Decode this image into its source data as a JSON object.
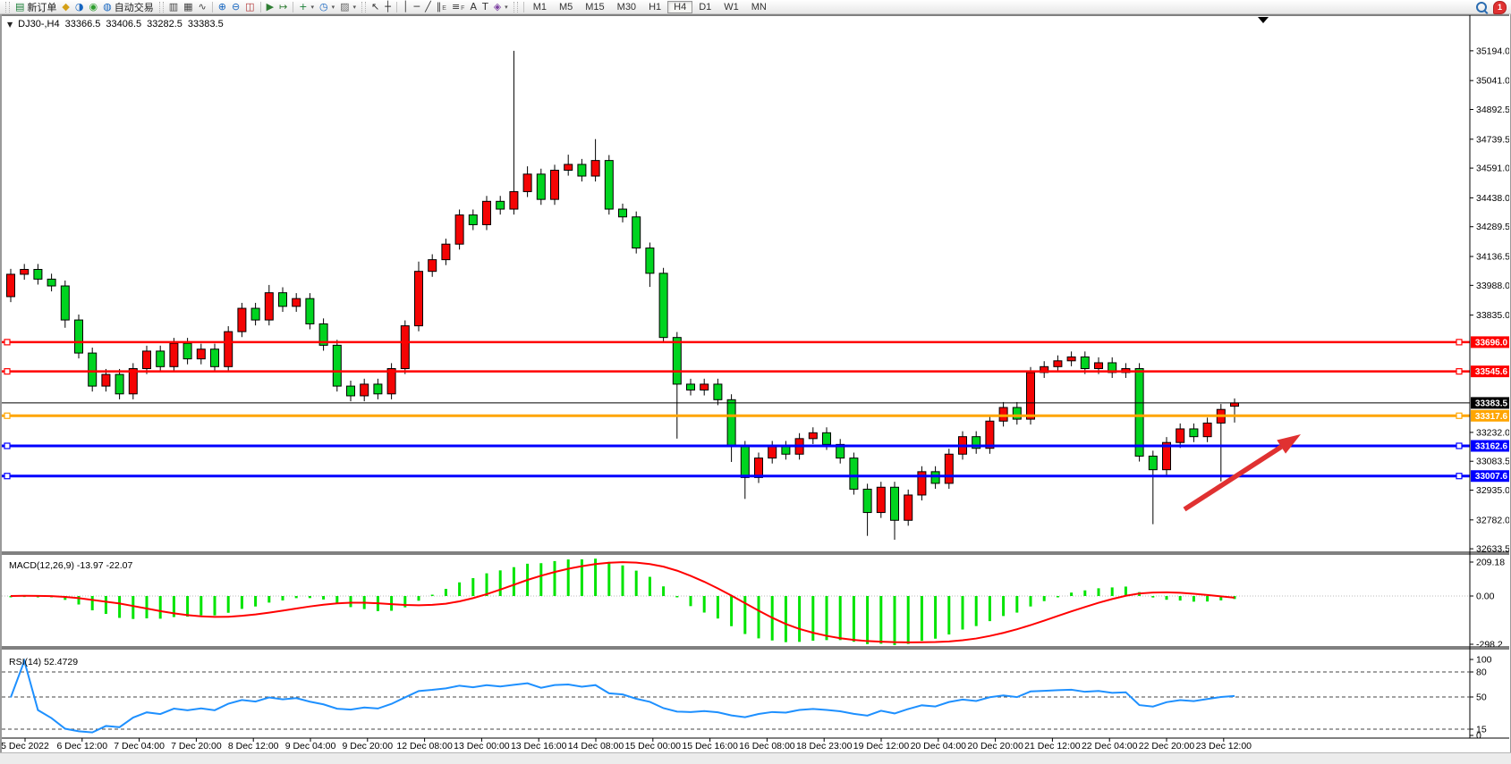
{
  "toolbar": {
    "items": [
      {
        "type": "handle"
      },
      {
        "type": "button",
        "name": "new-order-button",
        "icon": "new-order-icon",
        "glyph": "▤",
        "color": "#1a7f37",
        "label": "新订单"
      },
      {
        "type": "button",
        "name": "depth-of-market-button",
        "icon": "gold-cube-icon",
        "glyph": "◆",
        "color": "#d4a017"
      },
      {
        "type": "button",
        "name": "profile-button",
        "icon": "profile-icon",
        "glyph": "◑",
        "color": "#1565c0"
      },
      {
        "type": "button",
        "name": "signals-button",
        "icon": "signal-icon",
        "glyph": "◉",
        "color": "#2e9e2e"
      },
      {
        "type": "button",
        "name": "autotrading-button",
        "icon": "globe-icon",
        "glyph": "◍",
        "color": "#1565c0",
        "label": "自动交易"
      },
      {
        "type": "handle"
      },
      {
        "type": "button",
        "name": "bar-chart-button",
        "icon": "bar-chart-icon",
        "glyph": "▥",
        "color": "#444444"
      },
      {
        "type": "button",
        "name": "candlestick-chart-button",
        "icon": "candlestick-icon",
        "glyph": "▦",
        "color": "#444444"
      },
      {
        "type": "button",
        "name": "line-chart-button",
        "icon": "line-chart-icon",
        "glyph": "∿",
        "color": "#444444"
      },
      {
        "type": "sep"
      },
      {
        "type": "button",
        "name": "zoom-in-button",
        "icon": "zoom-in-icon",
        "glyph": "⊕",
        "color": "#1565c0"
      },
      {
        "type": "button",
        "name": "zoom-out-button",
        "icon": "zoom-out-icon",
        "glyph": "⊖",
        "color": "#1565c0"
      },
      {
        "type": "button",
        "name": "tile-windows-button",
        "icon": "tile-windows-icon",
        "glyph": "◫",
        "color": "#b03030"
      },
      {
        "type": "sep"
      },
      {
        "type": "button",
        "name": "auto-scroll-button",
        "icon": "auto-scroll-icon",
        "glyph": "▶",
        "color": "#2e7d32"
      },
      {
        "type": "button",
        "name": "chart-shift-button",
        "icon": "chart-shift-icon",
        "glyph": "↦",
        "color": "#2e7d32"
      },
      {
        "type": "sep"
      },
      {
        "type": "button",
        "name": "add-indicator-button",
        "icon": "add-indicator-icon",
        "glyph": "+",
        "color": "#1a7f37",
        "caret": true
      },
      {
        "type": "button",
        "name": "periods-button",
        "icon": "clock-icon",
        "glyph": "◷",
        "color": "#1565c0",
        "caret": true
      },
      {
        "type": "button",
        "name": "templates-button",
        "icon": "template-icon",
        "glyph": "▨",
        "color": "#666666",
        "caret": true
      },
      {
        "type": "handle"
      },
      {
        "type": "button",
        "name": "cursor-button",
        "icon": "cursor-icon",
        "glyph": "↖",
        "color": "#333333"
      },
      {
        "type": "button",
        "name": "crosshair-button",
        "icon": "crosshair-icon",
        "glyph": "┼",
        "color": "#333333"
      },
      {
        "type": "sep"
      },
      {
        "type": "button",
        "name": "vertical-line-button",
        "icon": "vertical-line-icon",
        "glyph": "│",
        "color": "#333333"
      },
      {
        "type": "button",
        "name": "horizontal-line-button",
        "icon": "horizontal-line-icon",
        "glyph": "─",
        "color": "#333333"
      },
      {
        "type": "button",
        "name": "trendline-button",
        "icon": "trendline-icon",
        "glyph": "╱",
        "color": "#333333"
      },
      {
        "type": "button",
        "name": "channel-button",
        "icon": "channel-icon",
        "glyph": "∥",
        "sub": "E",
        "color": "#333333"
      },
      {
        "type": "button",
        "name": "fibonacci-button",
        "icon": "fibonacci-icon",
        "glyph": "≡",
        "sub": "F",
        "color": "#333333"
      },
      {
        "type": "button",
        "name": "text-button",
        "icon": "text-icon",
        "glyph": "A",
        "color": "#333333"
      },
      {
        "type": "button",
        "name": "text-label-button",
        "icon": "text-label-icon",
        "glyph": "T",
        "color": "#333333"
      },
      {
        "type": "button",
        "name": "arrows-button",
        "icon": "arrows-icon",
        "glyph": "◈",
        "color": "#7b3fa0",
        "caret": true
      },
      {
        "type": "handle"
      }
    ],
    "timeframes": [
      "M1",
      "M5",
      "M15",
      "M30",
      "H1",
      "H4",
      "D1",
      "W1",
      "MN"
    ],
    "active_timeframe": "H4",
    "notification_count": "1"
  },
  "chart_header": {
    "menu_glyph": "▼",
    "symbol_period": "DJ30-,H4",
    "open": "33366.5",
    "high": "33406.5",
    "low": "33282.5",
    "close": "33383.5"
  },
  "colors": {
    "up": "#f40404",
    "down": "#00d420",
    "wick": "#000000",
    "macd_hist": "#00e400",
    "macd_signal": "#ff0000",
    "rsi_line": "#1e90ff",
    "level_red": "#ff0000",
    "level_orange": "#ffa500",
    "level_blue": "#0000ff",
    "current_price_line": "#000000",
    "arrow": "#e03131"
  },
  "chart_data": {
    "type": "candlestick",
    "title": "DJ30-,H4",
    "ylim": [
      32625,
      35345
    ],
    "y_ticks": [
      35194.0,
      35041.0,
      34892.5,
      34739.5,
      34591.0,
      34438.0,
      34289.5,
      34136.5,
      33988.0,
      33835.0,
      33232.0,
      33083.5,
      32935.0,
      32782.0,
      32633.5
    ],
    "x_labels": [
      "5 Dec 2022",
      "6 Dec 12:00",
      "7 Dec 04:00",
      "7 Dec 20:00",
      "8 Dec 12:00",
      "9 Dec 04:00",
      "9 Dec 20:00",
      "12 Dec 08:00",
      "13 Dec 00:00",
      "13 Dec 16:00",
      "14 Dec 08:00",
      "15 Dec 00:00",
      "15 Dec 16:00",
      "16 Dec 08:00",
      "18 Dec 23:00",
      "19 Dec 12:00",
      "20 Dec 04:00",
      "20 Dec 20:00",
      "21 Dec 12:00",
      "22 Dec 04:00",
      "22 Dec 20:00",
      "23 Dec 12:00"
    ],
    "close": [
      34045,
      34070,
      34020,
      33985,
      33810,
      33640,
      33470,
      33530,
      33430,
      33560,
      33650,
      33570,
      33690,
      33610,
      33660,
      33570,
      33750,
      33870,
      33810,
      33950,
      33880,
      33920,
      33790,
      33680,
      33470,
      33420,
      33480,
      33430,
      33560,
      33780,
      34060,
      34120,
      34200,
      34350,
      34300,
      34420,
      34380,
      34470,
      34560,
      34430,
      34580,
      34610,
      34550,
      34630,
      34380,
      34340,
      34180,
      34050,
      33720,
      33480,
      33450,
      33480,
      33400,
      33160,
      33000,
      33100,
      33160,
      33120,
      33200,
      33230,
      33170,
      33100,
      32940,
      32820,
      32950,
      32780,
      32910,
      33030,
      32970,
      33120,
      33210,
      33150,
      33290,
      33360,
      33300,
      33540,
      33570,
      33600,
      33620,
      33560,
      33590,
      33540,
      33560,
      33110,
      33040,
      33180,
      33250,
      33210,
      33280,
      33350,
      33383.5
    ],
    "open_overrides": {
      "0": 33930,
      "90": 33366.5
    },
    "high_overrides": {
      "19": 33990,
      "30": 34110,
      "37": 35194,
      "38": 34600,
      "41": 34660,
      "43": 34740,
      "90": 33406.5
    },
    "low_overrides": {
      "4": 33770,
      "47": 33980,
      "49": 33200,
      "53": 33080,
      "54": 32890,
      "63": 32700,
      "65": 32680,
      "84": 32760,
      "89": 32980,
      "90": 33282.5
    },
    "default_wick": 28,
    "current_price": 33383.5,
    "levels": [
      {
        "price": 33696.0,
        "color": "level_red"
      },
      {
        "price": 33545.6,
        "color": "level_red"
      },
      {
        "price": 33317.6,
        "color": "level_orange"
      },
      {
        "price": 33162.6,
        "color": "level_blue"
      },
      {
        "price": 33007.6,
        "color": "level_blue"
      }
    ],
    "indicators": [
      {
        "name": "MACD",
        "label": "MACD(12,26,9) -13.97 -22.07",
        "params": [
          12,
          26,
          9
        ],
        "values": [
          -13.97,
          -22.07
        ],
        "axis_labels": [
          "209.18",
          "0.00",
          "-298.2"
        ]
      },
      {
        "name": "RSI",
        "label": "RSI(14) 52.4729",
        "params": [
          14
        ],
        "value": 52.4729,
        "axis_labels": [
          "100",
          "80",
          "50",
          "15",
          "0"
        ],
        "dashed_levels": [
          80,
          50,
          15
        ]
      }
    ],
    "annotation_arrow": {
      "tail": [
        1322,
        554
      ],
      "tip": [
        1452,
        470
      ]
    },
    "bar_end_marker_x": 1410
  }
}
